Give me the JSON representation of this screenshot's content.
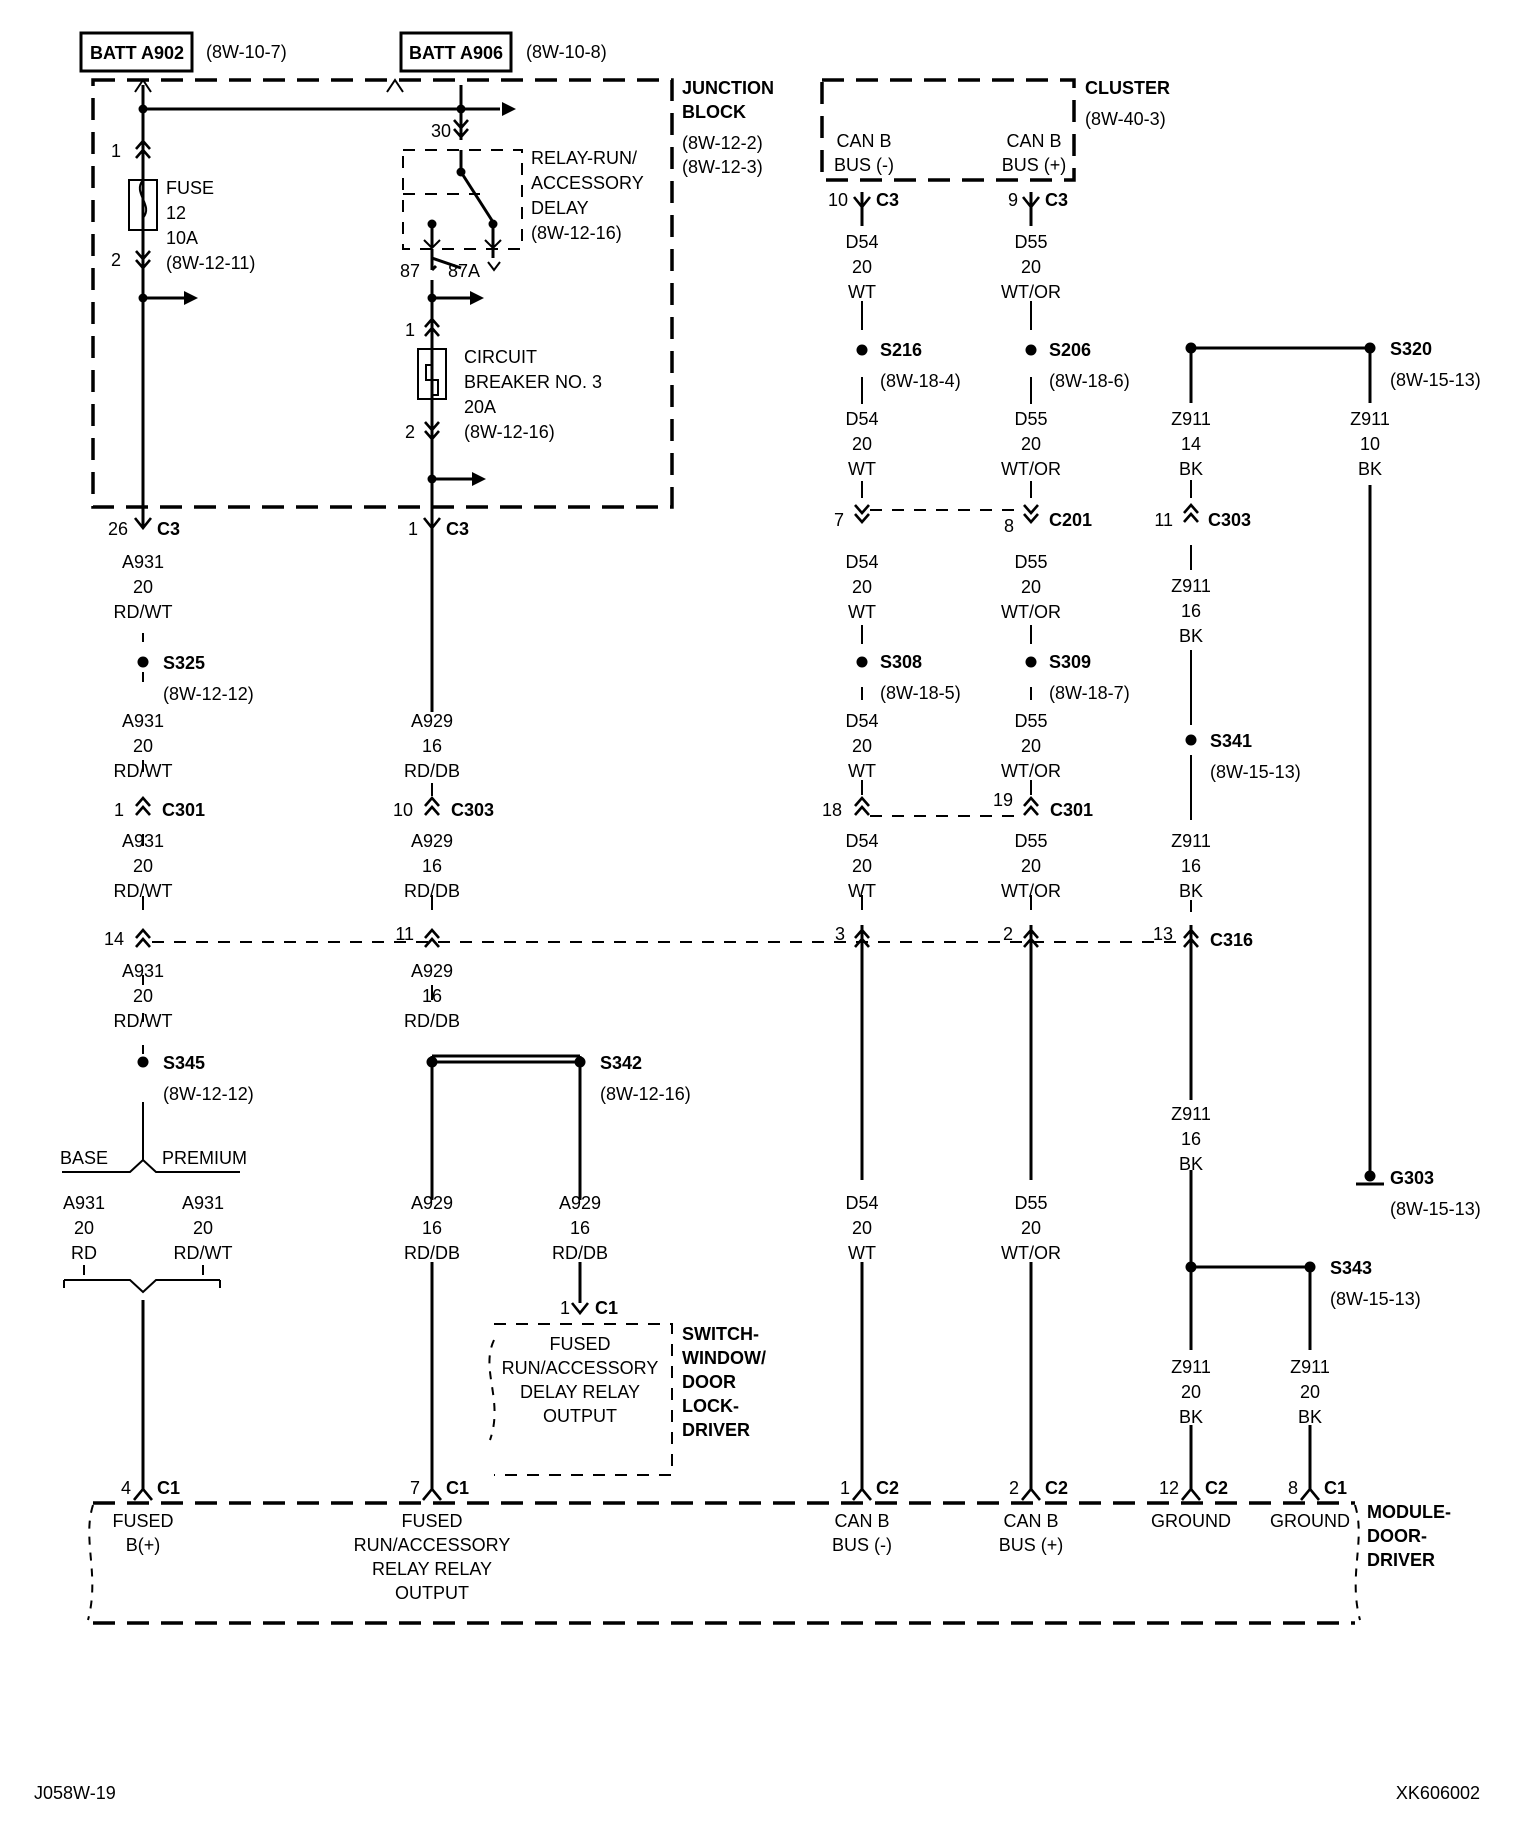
{
  "sources": {
    "batt_a902": {
      "label": "BATT A902",
      "ref": "(8W-10-7)"
    },
    "batt_a906": {
      "label": "BATT A906",
      "ref": "(8W-10-8)"
    }
  },
  "junction_block": {
    "title_1": "JUNCTION",
    "title_2": "BLOCK",
    "ref_1": "(8W-12-2)",
    "ref_2": "(8W-12-3)"
  },
  "fuse": {
    "pin_top": "1",
    "pin_bottom": "2",
    "l1": "FUSE",
    "l2": "12",
    "l3": "10A",
    "l4": "(8W-12-11)"
  },
  "relay": {
    "pin_30": "30",
    "pin_87": "87",
    "pin_87a": "87A",
    "l1": "RELAY-RUN/",
    "l2": "ACCESSORY",
    "l3": "DELAY",
    "l4": "(8W-12-16)"
  },
  "breaker": {
    "pin_top": "1",
    "pin_bottom": "2",
    "l1": "CIRCUIT",
    "l2": "BREAKER NO. 3",
    "l3": "20A",
    "l4": "(8W-12-16)"
  },
  "cluster": {
    "title": "CLUSTER",
    "ref": "(8W-40-3)",
    "canl_1": "CAN B",
    "canl_2": "BUS (-)",
    "canh_1": "CAN B",
    "canh_2": "BUS (+)"
  },
  "connectors": {
    "c3_26": {
      "pin": "26",
      "name": "C3"
    },
    "c3_1": {
      "pin": "1",
      "name": "C3"
    },
    "c3_10": {
      "pin": "10",
      "name": "C3"
    },
    "c3_9": {
      "pin": "9",
      "name": "C3"
    },
    "c201_7": {
      "pin": "7"
    },
    "c201_8": {
      "pin": "8",
      "name": "C201"
    },
    "c303_11": {
      "pin": "11",
      "name": "C303"
    },
    "c301_1": {
      "pin": "1",
      "name": "C301"
    },
    "c303_10": {
      "pin": "10",
      "name": "C303"
    },
    "c301_18": {
      "pin": "18"
    },
    "c301_19": {
      "pin": "19",
      "name": "C301"
    },
    "c316_14": {
      "pin": "14"
    },
    "c316_11": {
      "pin": "11"
    },
    "c316_3": {
      "pin": "3"
    },
    "c316_2": {
      "pin": "2"
    },
    "c316_13": {
      "pin": "13",
      "name": "C316"
    },
    "sw_c1_1": {
      "pin": "1",
      "name": "C1"
    },
    "m_c1_4": {
      "pin": "4",
      "name": "C1"
    },
    "m_c1_7": {
      "pin": "7",
      "name": "C1"
    },
    "m_c2_1": {
      "pin": "1",
      "name": "C2"
    },
    "m_c2_2": {
      "pin": "2",
      "name": "C2"
    },
    "m_c2_12": {
      "pin": "12",
      "name": "C2"
    },
    "m_c1_8": {
      "pin": "8",
      "name": "C1"
    }
  },
  "splices": {
    "s216": {
      "name": "S216",
      "ref": "(8W-18-4)"
    },
    "s206": {
      "name": "S206",
      "ref": "(8W-18-6)"
    },
    "s320": {
      "name": "S320",
      "ref": "(8W-15-13)"
    },
    "s325": {
      "name": "S325",
      "ref": "(8W-12-12)"
    },
    "s308": {
      "name": "S308",
      "ref": "(8W-18-5)"
    },
    "s309": {
      "name": "S309",
      "ref": "(8W-18-7)"
    },
    "s341": {
      "name": "S341",
      "ref": "(8W-15-13)"
    },
    "s345": {
      "name": "S345",
      "ref": "(8W-12-12)"
    },
    "s342": {
      "name": "S342",
      "ref": "(8W-12-16)"
    },
    "s343": {
      "name": "S343",
      "ref": "(8W-15-13)"
    }
  },
  "ground": {
    "name": "G303",
    "ref": "(8W-15-13)"
  },
  "wires": {
    "a931_1": [
      "A931",
      "20",
      "RD/WT"
    ],
    "a931_2": [
      "A931",
      "20",
      "RD/WT"
    ],
    "a931_3": [
      "A931",
      "20",
      "RD/WT"
    ],
    "a931_4": [
      "A931",
      "20",
      "RD/WT"
    ],
    "a931_base": [
      "A931",
      "20",
      "RD"
    ],
    "a931_prem": [
      "A931",
      "20",
      "RD/WT"
    ],
    "a929_1": [
      "A929",
      "16",
      "RD/DB"
    ],
    "a929_2": [
      "A929",
      "16",
      "RD/DB"
    ],
    "a929_3": [
      "A929",
      "16",
      "RD/DB"
    ],
    "a929_4": [
      "A929",
      "16",
      "RD/DB"
    ],
    "a929_5": [
      "A929",
      "16",
      "RD/DB"
    ],
    "d54_1": [
      "D54",
      "20",
      "WT"
    ],
    "d54_2": [
      "D54",
      "20",
      "WT"
    ],
    "d54_3": [
      "D54",
      "20",
      "WT"
    ],
    "d54_4": [
      "D54",
      "20",
      "WT"
    ],
    "d54_5": [
      "D54",
      "20",
      "WT"
    ],
    "d54_6": [
      "D54",
      "20",
      "WT"
    ],
    "d55_1": [
      "D55",
      "20",
      "WT/OR"
    ],
    "d55_2": [
      "D55",
      "20",
      "WT/OR"
    ],
    "d55_3": [
      "D55",
      "20",
      "WT/OR"
    ],
    "d55_4": [
      "D55",
      "20",
      "WT/OR"
    ],
    "d55_5": [
      "D55",
      "20",
      "WT/OR"
    ],
    "d55_6": [
      "D55",
      "20",
      "WT/OR"
    ],
    "z911_a": [
      "Z911",
      "14",
      "BK"
    ],
    "z911_b": [
      "Z911",
      "10",
      "BK"
    ],
    "z911_c": [
      "Z911",
      "16",
      "BK"
    ],
    "z911_d": [
      "Z911",
      "16",
      "BK"
    ],
    "z911_e": [
      "Z911",
      "16",
      "BK"
    ],
    "z911_f": [
      "Z911",
      "20",
      "BK"
    ],
    "z911_g": [
      "Z911",
      "20",
      "BK"
    ]
  },
  "options": {
    "base": "BASE",
    "premium": "PREMIUM"
  },
  "switch": {
    "l1": "FUSED",
    "l2": "RUN/ACCESSORY",
    "l3": "DELAY RELAY",
    "l4": "OUTPUT",
    "t1": "SWITCH-",
    "t2": "WINDOW/",
    "t3": "DOOR",
    "t4": "LOCK-",
    "t5": "DRIVER"
  },
  "module": {
    "fused_1": "FUSED",
    "fused_2": "B(+)",
    "run_1": "FUSED",
    "run_2": "RUN/ACCESSORY",
    "run_3": "RELAY RELAY",
    "run_4": "OUTPUT",
    "canl_1": "CAN B",
    "canl_2": "BUS (-)",
    "canh_1": "CAN B",
    "canh_2": "BUS (+)",
    "gnd_1": "GROUND",
    "gnd_2": "GROUND",
    "t1": "MODULE-",
    "t2": "DOOR-",
    "t3": "DRIVER"
  },
  "footer": {
    "left": "J058W-19",
    "right": "XK606002"
  }
}
